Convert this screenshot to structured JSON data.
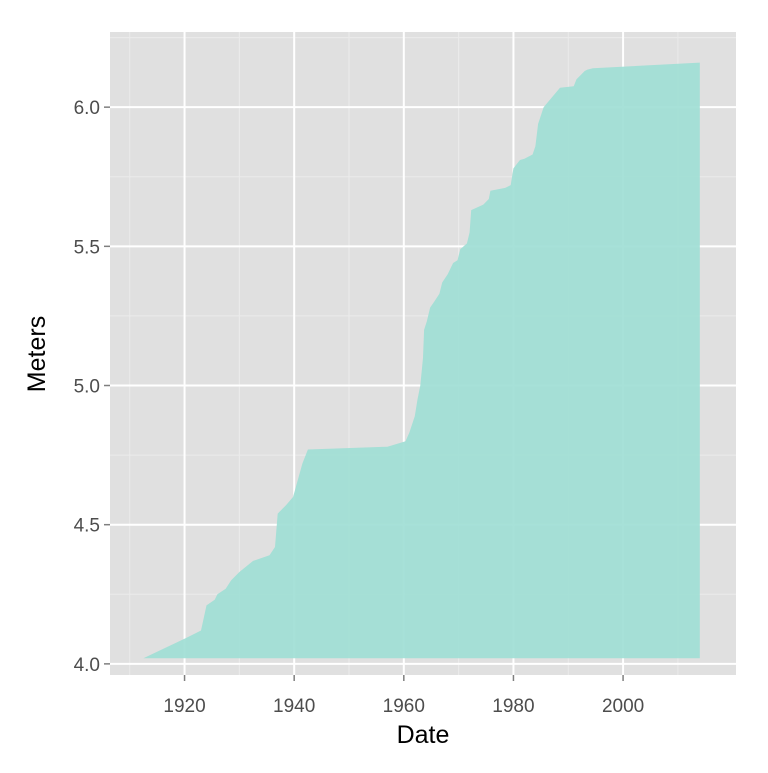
{
  "chart_data": {
    "type": "area",
    "title": "",
    "xlabel": "Date",
    "ylabel": "Meters",
    "xlim": [
      1906.4,
      2020.6
    ],
    "ylim": [
      3.96,
      6.27
    ],
    "x_ticks": [
      1920,
      1940,
      1960,
      1980,
      2000
    ],
    "x_tick_labels": [
      "1920",
      "1940",
      "1960",
      "1980",
      "2000"
    ],
    "y_ticks": [
      4.0,
      4.5,
      5.0,
      5.5,
      6.0
    ],
    "y_tick_labels": [
      "4.0",
      "4.5",
      "5.0",
      "5.5",
      "6.0"
    ],
    "grid": true,
    "legend": "none",
    "colors": {
      "fill": "#a0ded5",
      "panel": "#e0e0e0",
      "grid_major": "#ffffff",
      "grid_minor": "#ebebeb",
      "tick_text": "#4d4d4d",
      "title_text": "#000000"
    },
    "series": [
      {
        "baseline": 4.02,
        "x": [
          1912.5,
          1920.0,
          1923.0,
          1924.0,
          1925.5,
          1926.0,
          1927.5,
          1928.5,
          1930.0,
          1932.5,
          1935.5,
          1936.5,
          1937.0,
          1938.5,
          1939.8,
          1941.5,
          1942.5,
          1957.0,
          1959.5,
          1960.3,
          1961.0,
          1962.0,
          1962.5,
          1963.0,
          1963.5,
          1963.7,
          1964.2,
          1964.8,
          1965.5,
          1966.5,
          1967.0,
          1968.0,
          1969.0,
          1969.8,
          1970.3,
          1971.5,
          1972.0,
          1972.3,
          1974.5,
          1975.5,
          1975.8,
          1978.5,
          1979.5,
          1980.0,
          1980.8,
          1981.2,
          1982.0,
          1983.5,
          1984.0,
          1984.5,
          1985.0,
          1985.5,
          1988.5,
          1991.0,
          1991.5,
          1992.5,
          1993.0,
          1993.5,
          1994.5,
          2014.0
        ],
        "y": [
          4.02,
          4.09,
          4.12,
          4.21,
          4.23,
          4.25,
          4.27,
          4.3,
          4.33,
          4.37,
          4.39,
          4.42,
          4.54,
          4.57,
          4.6,
          4.72,
          4.77,
          4.78,
          4.795,
          4.8,
          4.83,
          4.89,
          4.95,
          5.0,
          5.1,
          5.2,
          5.23,
          5.28,
          5.3,
          5.33,
          5.37,
          5.4,
          5.44,
          5.45,
          5.49,
          5.51,
          5.55,
          5.63,
          5.65,
          5.67,
          5.7,
          5.71,
          5.72,
          5.78,
          5.8,
          5.81,
          5.815,
          5.83,
          5.86,
          5.94,
          5.97,
          6.0,
          6.07,
          6.075,
          6.1,
          6.12,
          6.13,
          6.135,
          6.14,
          6.16
        ]
      }
    ]
  }
}
